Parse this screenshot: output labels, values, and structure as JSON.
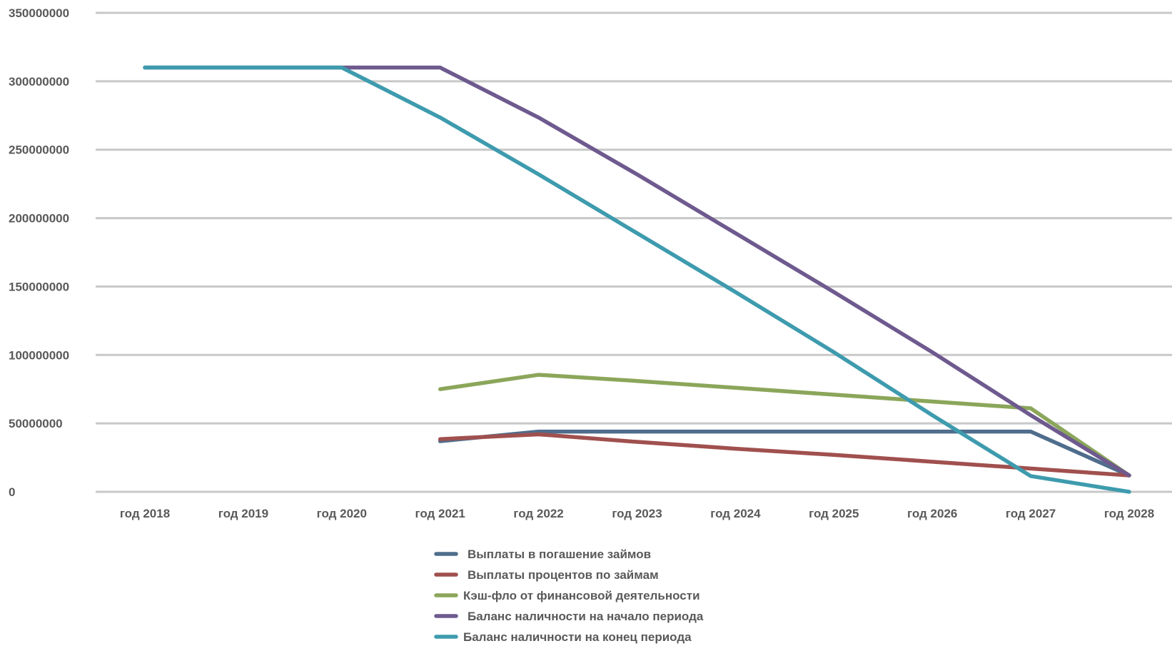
{
  "chart_data": {
    "type": "line",
    "categories": [
      "год 2018",
      "год 2019",
      "год 2020",
      "год 2021",
      "год 2022",
      "год 2023",
      "год 2024",
      "год 2025",
      "год 2026",
      "год 2027",
      "год 2028"
    ],
    "y_ticks": [
      "0",
      "50000000",
      "100000000",
      "150000000",
      "200000000",
      "250000000",
      "300000000",
      "350000000"
    ],
    "ylim": [
      0,
      350000000
    ],
    "grid": true,
    "legend_position": "bottom",
    "series": [
      {
        "name": "Выплаты в погашение займов",
        "color": "#4F6D8C",
        "values": [
          null,
          null,
          null,
          37000000,
          44000000,
          44000000,
          44000000,
          44000000,
          44000000,
          44000000,
          12000000
        ]
      },
      {
        "name": "Выплаты процентов по займам",
        "color": "#A0504E",
        "values": [
          null,
          null,
          null,
          38500000,
          42000000,
          36500000,
          31500000,
          27000000,
          22000000,
          17000000,
          12000000
        ]
      },
      {
        "name": "Кэш-фло от финансовой деятельности",
        "color": "#8BA65A",
        "values": [
          null,
          null,
          null,
          75000000,
          85500000,
          81000000,
          76000000,
          71000000,
          66000000,
          61000000,
          12000000
        ]
      },
      {
        "name": "Баланс наличности на начало периода",
        "color": "#6E5A8E",
        "values": [
          310000000,
          310000000,
          310000000,
          310000000,
          273500000,
          232000000,
          189000000,
          146000000,
          102000000,
          56000000,
          12000000
        ]
      },
      {
        "name": "Баланс наличности на конец периода",
        "color": "#3E9BAE",
        "values": [
          310000000,
          310000000,
          310000000,
          273500000,
          232000000,
          189000000,
          146000000,
          102000000,
          56000000,
          11500000,
          0
        ]
      }
    ]
  }
}
